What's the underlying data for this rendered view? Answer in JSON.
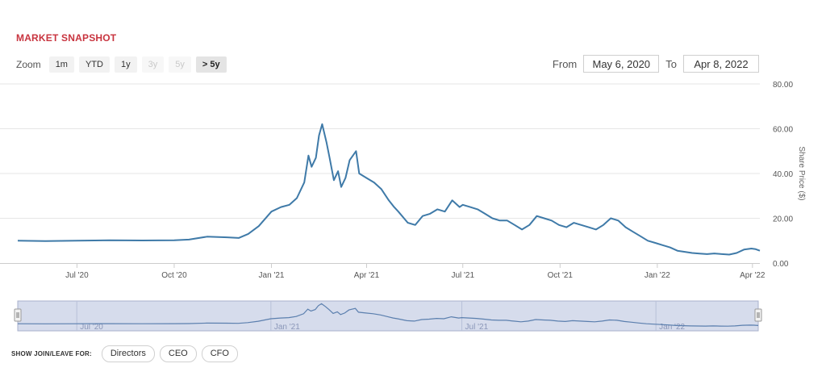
{
  "title": "MARKET SNAPSHOT",
  "zoom": {
    "label": "Zoom",
    "buttons": [
      {
        "label": "1m",
        "state": "enabled"
      },
      {
        "label": "YTD",
        "state": "enabled"
      },
      {
        "label": "1y",
        "state": "enabled"
      },
      {
        "label": "3y",
        "state": "disabled"
      },
      {
        "label": "5y",
        "state": "disabled"
      },
      {
        "label": "> 5y",
        "state": "selected"
      }
    ]
  },
  "range": {
    "from_label": "From",
    "from_value": "May 6, 2020",
    "to_label": "To",
    "to_value": "Apr 8, 2022"
  },
  "bottom": {
    "label": "SHOW JOIN/LEAVE FOR:",
    "buttons": [
      "Directors",
      "CEO",
      "CFO"
    ]
  },
  "chart_data": {
    "type": "line",
    "title": "",
    "ylabel": "Share Price ($)",
    "ylim": [
      0,
      80
    ],
    "yticks": [
      "0.00",
      "20.00",
      "40.00",
      "60.00",
      "80.00"
    ],
    "xlim": [
      "2020-05-06",
      "2022-04-08"
    ],
    "xticks": [
      {
        "label": "Jul '20",
        "date": "2020-07-01"
      },
      {
        "label": "Oct '20",
        "date": "2020-10-01"
      },
      {
        "label": "Jan '21",
        "date": "2021-01-01"
      },
      {
        "label": "Apr '21",
        "date": "2021-04-01"
      },
      {
        "label": "Jul '21",
        "date": "2021-07-01"
      },
      {
        "label": "Oct '21",
        "date": "2021-10-01"
      },
      {
        "label": "Jan '22",
        "date": "2022-01-01"
      },
      {
        "label": "Apr '22",
        "date": "2022-04-01"
      }
    ],
    "navigator_ticks": [
      "Jul '20",
      "Jan '21",
      "Jul '21",
      "Jan '22"
    ],
    "line_color": "#3f7aa8",
    "series": [
      {
        "x": [
          "2020-05-06",
          "2020-06-01",
          "2020-07-01",
          "2020-08-01",
          "2020-09-01",
          "2020-10-01",
          "2020-10-15",
          "2020-11-01",
          "2020-11-20",
          "2020-12-01",
          "2020-12-10",
          "2020-12-20",
          "2021-01-01",
          "2021-01-10",
          "2021-01-18",
          "2021-01-25",
          "2021-02-01",
          "2021-02-05",
          "2021-02-08",
          "2021-02-12",
          "2021-02-15",
          "2021-02-18",
          "2021-02-22",
          "2021-02-25",
          "2021-03-01",
          "2021-03-05",
          "2021-03-08",
          "2021-03-12",
          "2021-03-16",
          "2021-03-22",
          "2021-03-25",
          "2021-04-01",
          "2021-04-08",
          "2021-04-15",
          "2021-04-22",
          "2021-04-27",
          "2021-05-01",
          "2021-05-10",
          "2021-05-17",
          "2021-05-24",
          "2021-05-31",
          "2021-06-07",
          "2021-06-14",
          "2021-06-21",
          "2021-06-28",
          "2021-07-01",
          "2021-07-08",
          "2021-07-15",
          "2021-07-22",
          "2021-07-29",
          "2021-08-05",
          "2021-08-12",
          "2021-08-19",
          "2021-08-26",
          "2021-09-02",
          "2021-09-09",
          "2021-09-16",
          "2021-09-23",
          "2021-09-30",
          "2021-10-07",
          "2021-10-14",
          "2021-10-21",
          "2021-10-28",
          "2021-11-04",
          "2021-11-11",
          "2021-11-18",
          "2021-11-25",
          "2021-12-02",
          "2021-12-09",
          "2021-12-16",
          "2021-12-23",
          "2021-12-30",
          "2022-01-06",
          "2022-01-13",
          "2022-01-20",
          "2022-01-27",
          "2022-02-03",
          "2022-02-10",
          "2022-02-17",
          "2022-02-24",
          "2022-03-03",
          "2022-03-10",
          "2022-03-17",
          "2022-03-24",
          "2022-03-31",
          "2022-04-04",
          "2022-04-08"
        ],
        "y": [
          10,
          9.8,
          10,
          10.2,
          10.1,
          10.2,
          10.5,
          11.8,
          11.5,
          11.2,
          13,
          16.5,
          23,
          25,
          26,
          29,
          36,
          48,
          43,
          47,
          57,
          62,
          54,
          47,
          37,
          41,
          34,
          38,
          46,
          50,
          40,
          38,
          36,
          33,
          28,
          25,
          23,
          18,
          17,
          21,
          22,
          24,
          23,
          28,
          25,
          26,
          25,
          24,
          22,
          20,
          19,
          19,
          17,
          15,
          17,
          21,
          20,
          19,
          17,
          16,
          18,
          17,
          16,
          15,
          17,
          20,
          19,
          16,
          14,
          12,
          10,
          9,
          8,
          7,
          5.5,
          5,
          4.5,
          4.2,
          4,
          4.3,
          4,
          3.8,
          4.5,
          6,
          6.5,
          6.2,
          5.5
        ]
      }
    ]
  }
}
